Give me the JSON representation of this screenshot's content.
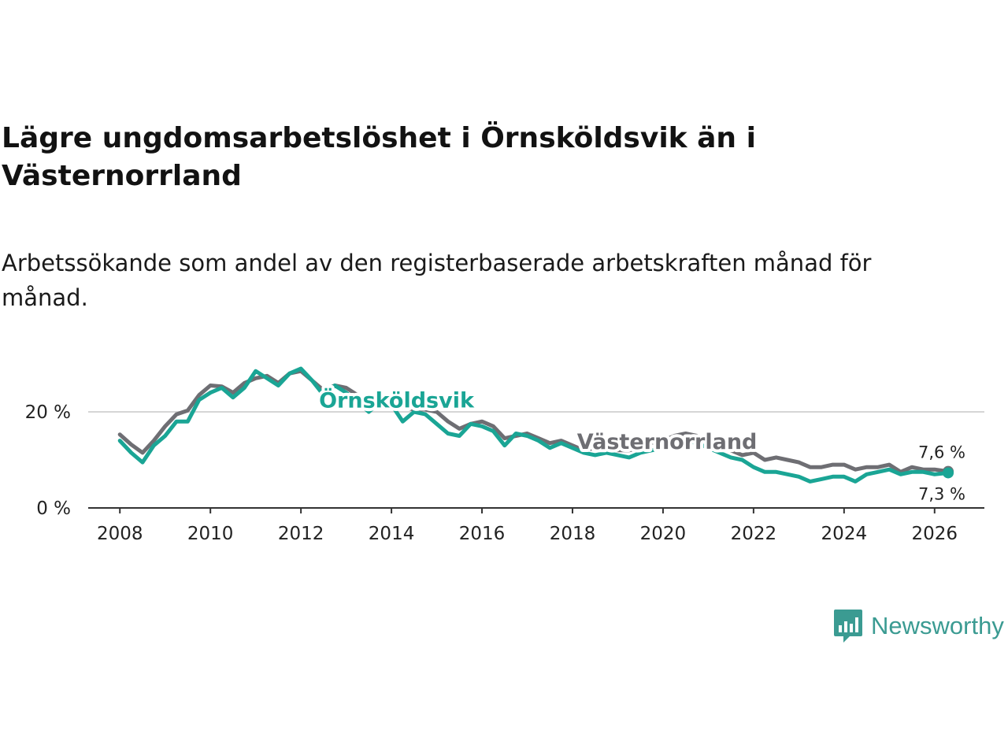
{
  "title": "Lägre ungdomsarbetslöshet i Örnsköldsvik än i Västernorrland",
  "subtitle": "Arbetssökande som andel av den registerbaserade arbetskraften månad för månad.",
  "brand": "Newsworthy",
  "colors": {
    "ornskoldsvik": "#1aa595",
    "vasternorrland": "#6e6e73",
    "grid": "#d6d6d6",
    "axis": "#333333",
    "brand": "#3b9b92"
  },
  "chart_data": {
    "type": "line",
    "title": "Lägre ungdomsarbetslöshet i Örnsköldsvik än i Västernorrland",
    "xlabel": "",
    "ylabel": "",
    "xlim": [
      2007.3,
      2027.1
    ],
    "ylim": [
      0,
      30
    ],
    "x_ticks": [
      "2008",
      "2010",
      "2012",
      "2014",
      "2016",
      "2018",
      "2020",
      "2022",
      "2024",
      "2026"
    ],
    "y_ticks": [
      "0 %",
      "20 %"
    ],
    "series": [
      {
        "name": "Västernorrland",
        "end_label": "7,6 %",
        "x": [
          2008.0,
          2008.25,
          2008.5,
          2008.75,
          2009.0,
          2009.25,
          2009.5,
          2009.75,
          2010.0,
          2010.25,
          2010.5,
          2010.75,
          2011.0,
          2011.25,
          2011.5,
          2011.75,
          2012.0,
          2012.25,
          2012.5,
          2012.75,
          2013.0,
          2013.25,
          2013.5,
          2013.75,
          2014.0,
          2014.25,
          2014.5,
          2014.75,
          2015.0,
          2015.25,
          2015.5,
          2015.75,
          2016.0,
          2016.25,
          2016.5,
          2016.75,
          2017.0,
          2017.25,
          2017.5,
          2017.75,
          2018.0,
          2018.25,
          2018.5,
          2018.75,
          2019.0,
          2019.25,
          2019.5,
          2019.75,
          2020.0,
          2020.25,
          2020.5,
          2020.75,
          2021.0,
          2021.25,
          2021.5,
          2021.75,
          2022.0,
          2022.25,
          2022.5,
          2022.75,
          2023.0,
          2023.25,
          2023.5,
          2023.75,
          2024.0,
          2024.25,
          2024.5,
          2024.75,
          2025.0,
          2025.25,
          2025.5,
          2025.75,
          2026.0,
          2026.3
        ],
        "values": [
          15.3,
          13.2,
          11.5,
          14.0,
          17.0,
          19.5,
          20.3,
          23.5,
          25.5,
          25.3,
          24.0,
          26.0,
          27.0,
          27.5,
          26.0,
          28.0,
          28.5,
          26.5,
          24.5,
          25.5,
          25.0,
          23.5,
          22.0,
          23.0,
          22.0,
          21.0,
          20.5,
          20.5,
          20.0,
          18.0,
          16.5,
          17.5,
          18.0,
          17.0,
          14.5,
          15.0,
          15.5,
          14.5,
          13.5,
          14.0,
          13.0,
          12.0,
          12.5,
          12.0,
          12.0,
          12.0,
          12.5,
          13.5,
          14.0,
          15.0,
          15.5,
          15.0,
          14.0,
          13.0,
          12.0,
          11.0,
          11.5,
          10.0,
          10.5,
          10.0,
          9.5,
          8.5,
          8.5,
          9.0,
          9.0,
          8.0,
          8.5,
          8.5,
          9.0,
          7.5,
          8.5,
          8.0,
          8.0,
          7.6
        ]
      },
      {
        "name": "Örnsköldsvik",
        "end_label": "7,3 %",
        "x": [
          2008.0,
          2008.25,
          2008.5,
          2008.75,
          2009.0,
          2009.25,
          2009.5,
          2009.75,
          2010.0,
          2010.25,
          2010.5,
          2010.75,
          2011.0,
          2011.25,
          2011.5,
          2011.75,
          2012.0,
          2012.25,
          2012.5,
          2012.75,
          2013.0,
          2013.25,
          2013.5,
          2013.75,
          2014.0,
          2014.25,
          2014.5,
          2014.75,
          2015.0,
          2015.25,
          2015.5,
          2015.75,
          2016.0,
          2016.25,
          2016.5,
          2016.75,
          2017.0,
          2017.25,
          2017.5,
          2017.75,
          2018.0,
          2018.25,
          2018.5,
          2018.75,
          2019.0,
          2019.25,
          2019.5,
          2019.75,
          2020.0,
          2020.25,
          2020.5,
          2020.75,
          2021.0,
          2021.25,
          2021.5,
          2021.75,
          2022.0,
          2022.25,
          2022.5,
          2022.75,
          2023.0,
          2023.25,
          2023.5,
          2023.75,
          2024.0,
          2024.25,
          2024.5,
          2024.75,
          2025.0,
          2025.25,
          2025.5,
          2025.75,
          2026.0,
          2026.3
        ],
        "values": [
          14.0,
          11.5,
          9.5,
          13.0,
          15.0,
          18.0,
          18.0,
          22.5,
          24.0,
          25.0,
          23.0,
          25.0,
          28.5,
          27.0,
          25.5,
          28.0,
          29.0,
          26.5,
          23.5,
          25.5,
          24.0,
          22.0,
          20.0,
          22.0,
          21.5,
          18.0,
          20.0,
          19.5,
          17.5,
          15.5,
          15.0,
          17.5,
          17.0,
          16.0,
          13.0,
          15.5,
          15.0,
          14.0,
          12.5,
          13.5,
          12.5,
          11.5,
          11.0,
          11.5,
          11.0,
          10.5,
          11.5,
          12.0,
          12.5,
          13.5,
          14.0,
          13.5,
          12.5,
          11.5,
          10.5,
          10.0,
          8.5,
          7.5,
          7.5,
          7.0,
          6.5,
          5.5,
          6.0,
          6.5,
          6.5,
          5.5,
          7.0,
          7.5,
          8.0,
          7.0,
          7.5,
          7.5,
          7.0,
          7.3
        ]
      }
    ]
  }
}
